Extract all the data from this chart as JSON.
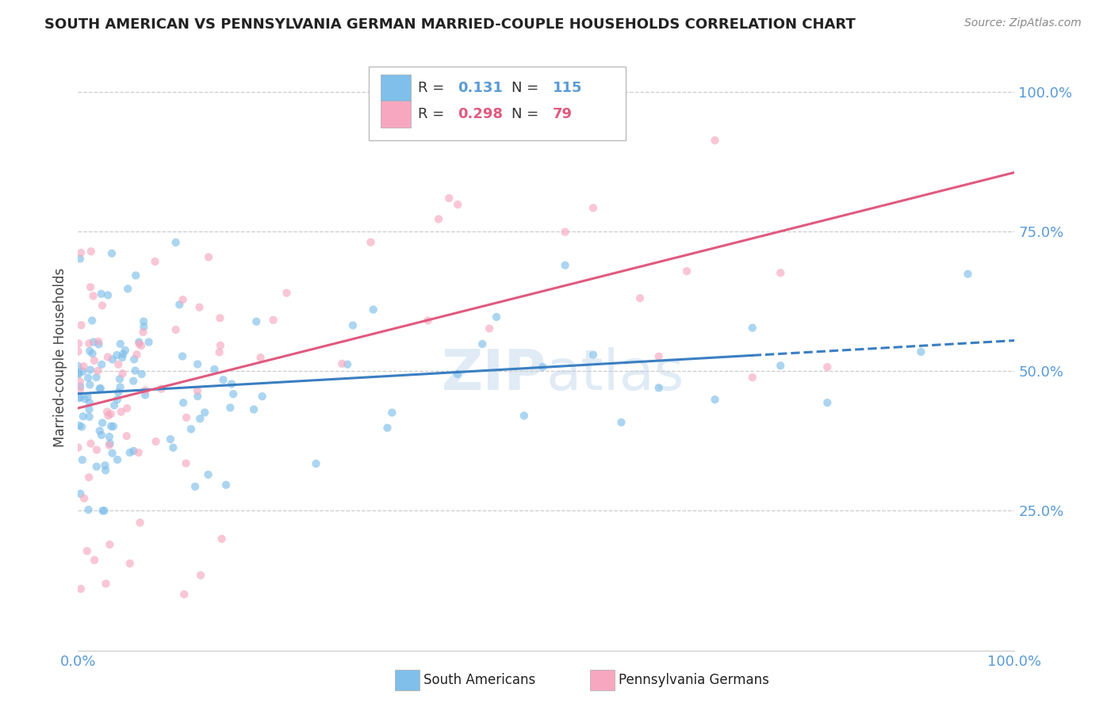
{
  "title": "SOUTH AMERICAN VS PENNSYLVANIA GERMAN MARRIED-COUPLE HOUSEHOLDS CORRELATION CHART",
  "source": "Source: ZipAtlas.com",
  "ylabel": "Married-couple Households",
  "legend_blue_R": "0.131",
  "legend_blue_N": "115",
  "legend_pink_R": "0.298",
  "legend_pink_N": "79",
  "legend_label_blue": "South Americans",
  "legend_label_pink": "Pennsylvania Germans",
  "blue_color": "#7fbfea",
  "pink_color": "#f7a8c0",
  "blue_line_color": "#3a7fc1",
  "pink_line_color": "#e05a80",
  "watermark_color": "#a8c8e8",
  "tick_color": "#5b9bd5",
  "grid_color": "#cccccc",
  "blue_intercept": 0.475,
  "blue_slope": 0.1,
  "pink_intercept": 0.5,
  "pink_slope": 0.32,
  "blue_line_solid_end": 0.72,
  "xlim": [
    0.0,
    1.0
  ],
  "ylim": [
    0.0,
    1.05
  ],
  "ytick_positions": [
    0.25,
    0.5,
    0.75,
    1.0
  ],
  "ytick_labels": [
    "25.0%",
    "50.0%",
    "75.0%",
    "100.0%"
  ],
  "xtick_positions": [
    0.0,
    1.0
  ],
  "xtick_labels": [
    "0.0%",
    "100.0%"
  ]
}
